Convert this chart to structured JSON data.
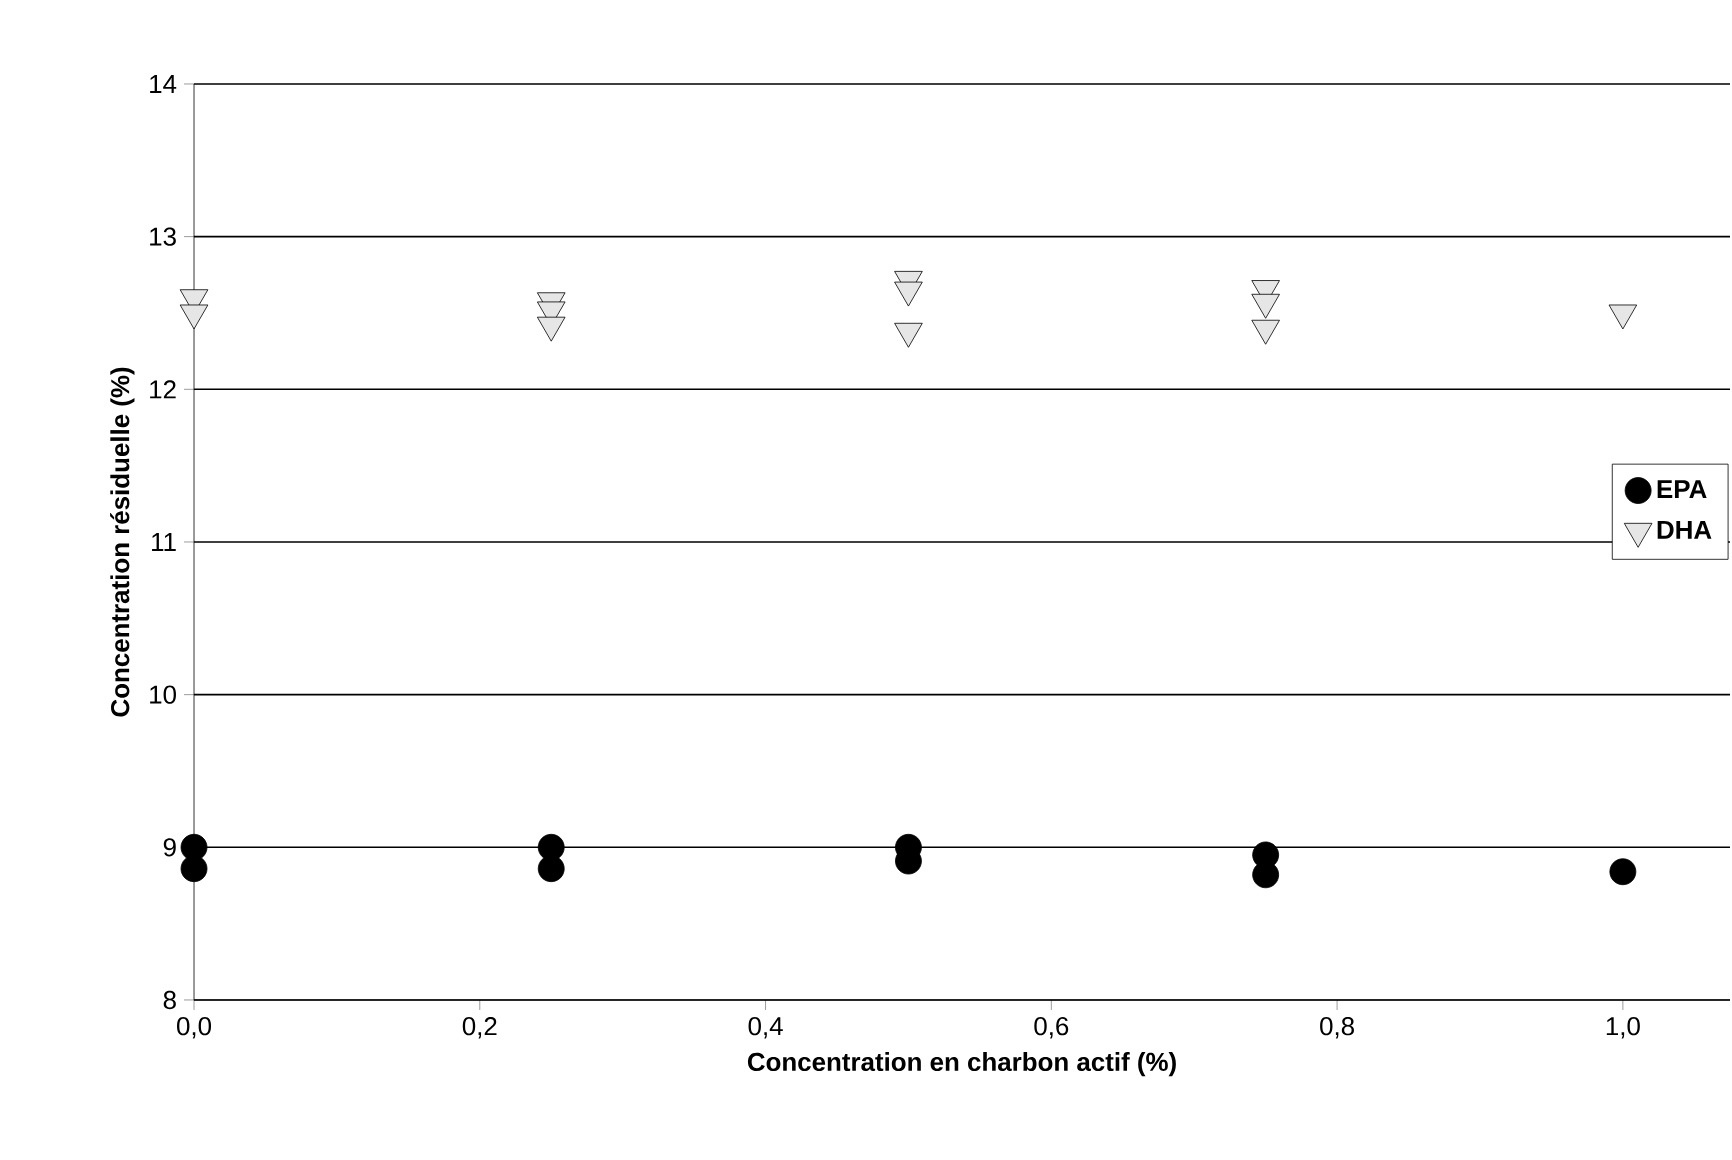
{
  "chart_data": {
    "type": "scatter",
    "xlabel": "Concentration en charbon actif (%)",
    "ylabel": "Concentration résiduelle (%)",
    "xlim": [
      0,
      1.075
    ],
    "ylim": [
      8,
      14
    ],
    "xticks": [
      {
        "value": 0,
        "label": "0,0"
      },
      {
        "value": 0.2,
        "label": "0,2"
      },
      {
        "value": 0.4,
        "label": "0,4"
      },
      {
        "value": 0.6,
        "label": "0,6"
      },
      {
        "value": 0.8,
        "label": "0,8"
      },
      {
        "value": 1,
        "label": "1,0"
      }
    ],
    "yticks": [
      8,
      9,
      10,
      11,
      12,
      13,
      14
    ],
    "grid": "y",
    "legend": "right",
    "series": [
      {
        "name": "EPA",
        "color": "#000000",
        "marker": "circle",
        "x": [
          0,
          0,
          0.25,
          0.25,
          0.5,
          0.5,
          0.75,
          0.75,
          1
        ],
        "values": [
          9.0,
          8.86,
          9.0,
          8.86,
          9.0,
          8.91,
          8.95,
          8.82,
          8.84
        ]
      },
      {
        "name": "DHA",
        "color": "#e6e6e6",
        "marker": "triangle",
        "x": [
          0,
          0,
          0.25,
          0.25,
          0.25,
          0.5,
          0.5,
          0.5,
          0.75,
          0.75,
          0.75,
          1
        ],
        "values": [
          12.6,
          12.5,
          12.58,
          12.52,
          12.42,
          12.72,
          12.65,
          12.38,
          12.66,
          12.57,
          12.4,
          12.5
        ]
      }
    ]
  }
}
